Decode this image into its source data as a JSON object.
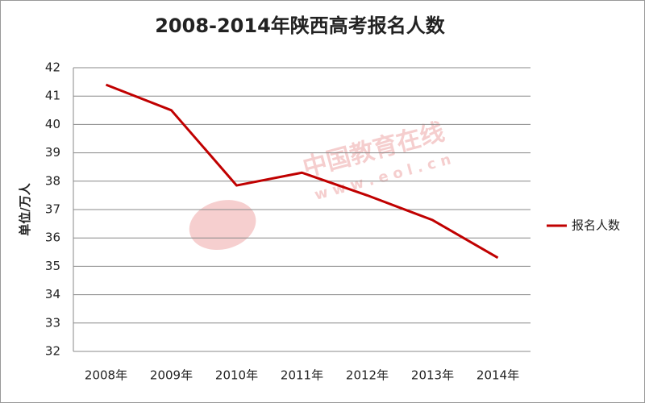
{
  "chart_data": {
    "type": "line",
    "title": "2008-2014年陕西高考报名人数",
    "y_label": "单位/万人",
    "categories": [
      "2008年",
      "2009年",
      "2010年",
      "2011年",
      "2012年",
      "2013年",
      "2014年"
    ],
    "series": [
      {
        "name": "报名人数",
        "color": "#c00000",
        "values": [
          41.4,
          40.5,
          37.85,
          38.3,
          37.5,
          36.63,
          35.3
        ]
      }
    ],
    "ylim": [
      32,
      42
    ],
    "yticks": [
      32,
      33,
      34,
      35,
      36,
      37,
      38,
      39,
      40,
      41,
      42
    ],
    "grid": true,
    "legend": "right",
    "watermark": {
      "name": "中国教育在线",
      "url": "w w w . e o l . c n"
    }
  }
}
